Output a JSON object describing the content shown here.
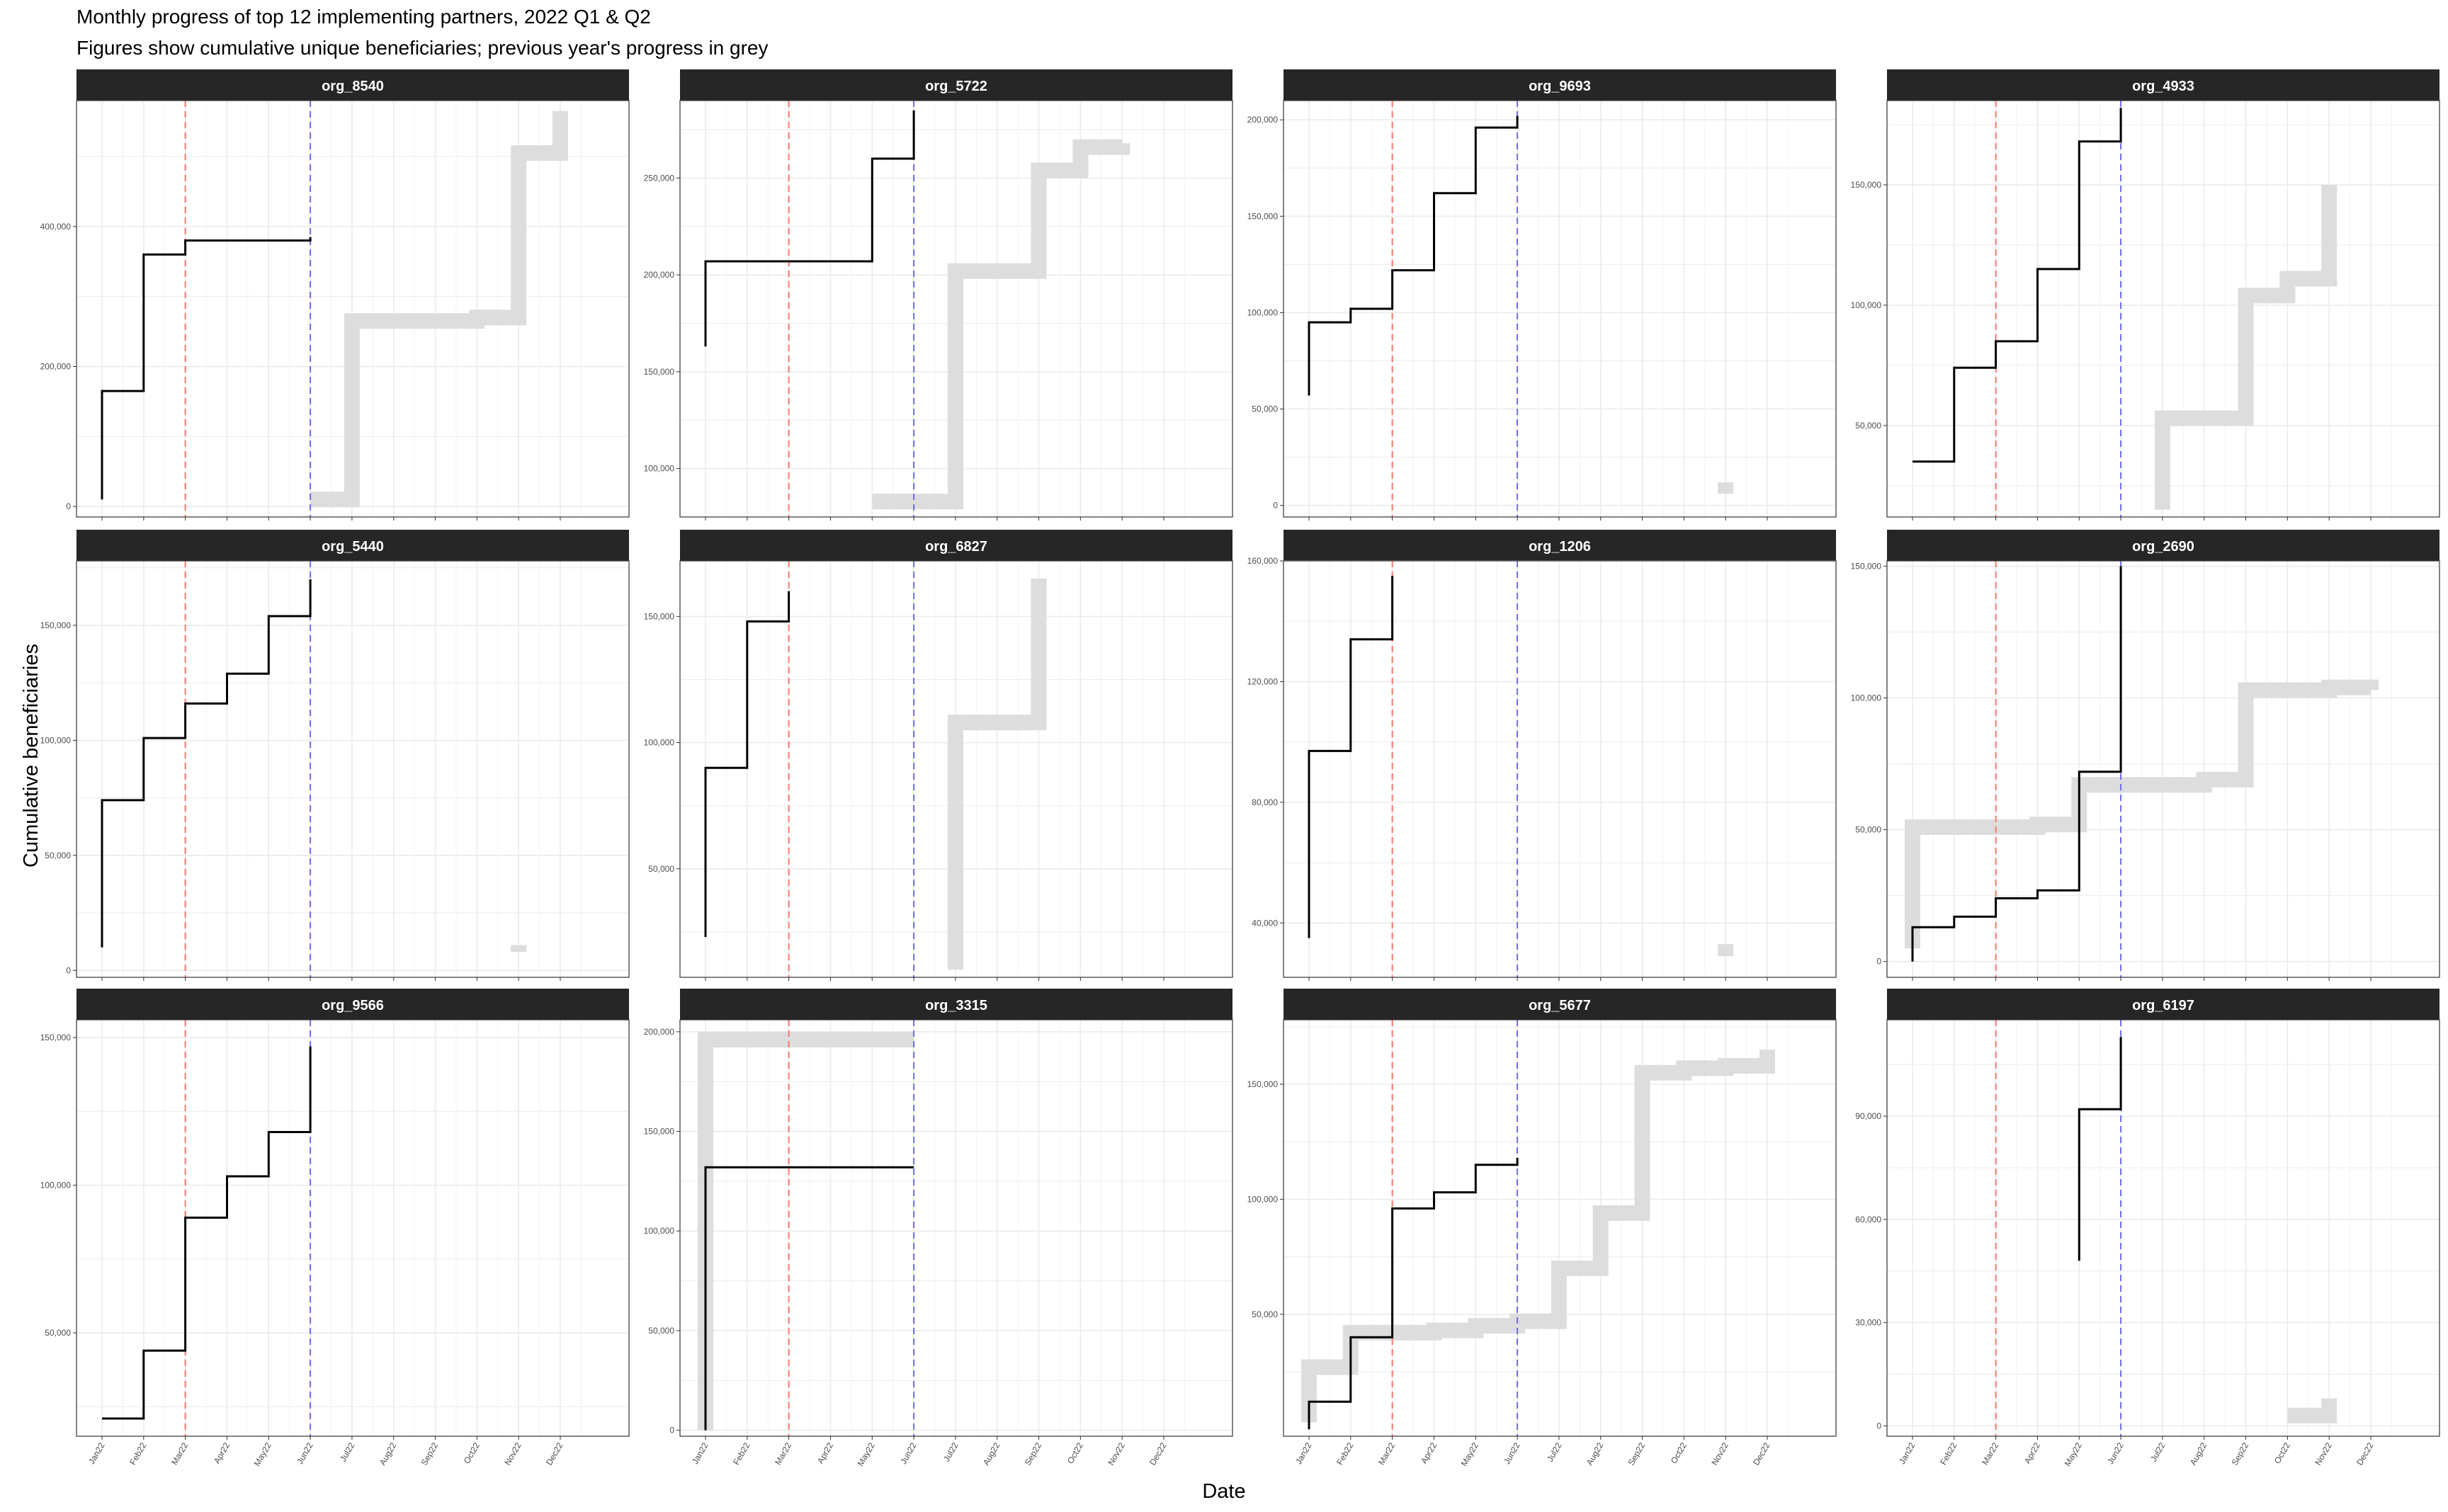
{
  "title": "Monthly progress of top 12 implementing partners, 2022 Q1 & Q2",
  "subtitle": "Figures show cumulative unique beneficiaries; previous year's progress in grey",
  "chart_data": {
    "type": "line",
    "step": true,
    "xlabel": "Date",
    "ylabel": "Cumulative beneficiaries",
    "months": [
      "Jan22",
      "Feb22",
      "Mar22",
      "Apr22",
      "May22",
      "Jun22",
      "Jul22",
      "Aug22",
      "Sep22",
      "Oct22",
      "Nov22",
      "Dec22"
    ],
    "xlim": [
      0,
      12.0
    ],
    "reference_lines": [
      {
        "date": "Mar22",
        "color": "#f8766d",
        "style": "dashed"
      },
      {
        "date": "Jun22",
        "color": "#6b6bf0",
        "style": "dashed"
      }
    ],
    "grid": true,
    "series_styles": {
      "current": {
        "color": "#000000",
        "label": "2022"
      },
      "previous": {
        "color": "#dddddd",
        "label": "previous year"
      }
    },
    "panels": [
      {
        "name": "org_8540",
        "ylim": [
          -15000,
          580000
        ],
        "yticks": [
          0,
          200000,
          400000
        ],
        "current": [
          [
            0,
            10000
          ],
          [
            0,
            165000
          ],
          [
            1,
            165000
          ],
          [
            1,
            360000
          ],
          [
            2,
            360000
          ],
          [
            2,
            380000
          ],
          [
            5,
            380000
          ],
          [
            5,
            385000
          ]
        ],
        "previous": [
          [
            5,
            10000
          ],
          [
            6,
            10000
          ],
          [
            6,
            265000
          ],
          [
            9,
            265000
          ],
          [
            9,
            270000
          ],
          [
            10,
            270000
          ],
          [
            10,
            505000
          ],
          [
            11,
            505000
          ],
          [
            11,
            565000
          ]
        ]
      },
      {
        "name": "org_5722",
        "ylim": [
          75000,
          290000
        ],
        "yticks": [
          100000,
          150000,
          200000,
          250000
        ],
        "current": [
          [
            0,
            163000
          ],
          [
            0,
            207000
          ],
          [
            4,
            207000
          ],
          [
            4,
            260000
          ],
          [
            5,
            260000
          ],
          [
            5,
            285000
          ]
        ],
        "previous": [
          [
            4,
            83000
          ],
          [
            6,
            83000
          ],
          [
            6,
            202000
          ],
          [
            8,
            202000
          ],
          [
            8,
            254000
          ],
          [
            9,
            254000
          ],
          [
            9,
            266000
          ],
          [
            10,
            266000
          ],
          [
            10,
            268000
          ]
        ]
      },
      {
        "name": "org_9693",
        "ylim": [
          -6000,
          210000
        ],
        "yticks": [
          0,
          50000,
          100000,
          150000,
          200000
        ],
        "current": [
          [
            0,
            57000
          ],
          [
            0,
            95000
          ],
          [
            1,
            95000
          ],
          [
            1,
            102000
          ],
          [
            2,
            102000
          ],
          [
            2,
            122000
          ],
          [
            3,
            122000
          ],
          [
            3,
            162000
          ],
          [
            4,
            162000
          ],
          [
            4,
            196000
          ],
          [
            5,
            196000
          ],
          [
            5,
            202000
          ]
        ],
        "previous": [
          [
            10,
            6000
          ],
          [
            10,
            12000
          ]
        ]
      },
      {
        "name": "org_4933",
        "ylim": [
          12000,
          185000
        ],
        "yticks": [
          50000,
          100000,
          150000
        ],
        "current": [
          [
            0,
            35000
          ],
          [
            1,
            35000
          ],
          [
            1,
            74000
          ],
          [
            2,
            74000
          ],
          [
            2,
            85000
          ],
          [
            3,
            85000
          ],
          [
            3,
            115000
          ],
          [
            4,
            115000
          ],
          [
            4,
            168000
          ],
          [
            5,
            168000
          ],
          [
            5,
            182000
          ]
        ],
        "previous": [
          [
            6,
            15000
          ],
          [
            6,
            53000
          ],
          [
            8,
            53000
          ],
          [
            8,
            104000
          ],
          [
            9,
            104000
          ],
          [
            9,
            111000
          ],
          [
            10,
            111000
          ],
          [
            10,
            150000
          ]
        ]
      },
      {
        "name": "org_5440",
        "ylim": [
          -3000,
          178000
        ],
        "yticks": [
          0,
          50000,
          100000,
          150000
        ],
        "current": [
          [
            0,
            10000
          ],
          [
            0,
            74000
          ],
          [
            1,
            74000
          ],
          [
            1,
            101000
          ],
          [
            2,
            101000
          ],
          [
            2,
            116000
          ],
          [
            3,
            116000
          ],
          [
            3,
            129000
          ],
          [
            4,
            129000
          ],
          [
            4,
            154000
          ],
          [
            5,
            154000
          ],
          [
            5,
            170000
          ]
        ],
        "previous": [
          [
            10,
            8000
          ],
          [
            10,
            11000
          ]
        ]
      },
      {
        "name": "org_6827",
        "ylim": [
          7000,
          172000
        ],
        "yticks": [
          50000,
          100000,
          150000
        ],
        "current": [
          [
            0,
            23000
          ],
          [
            0,
            90000
          ],
          [
            1,
            90000
          ],
          [
            1,
            148000
          ],
          [
            2,
            148000
          ],
          [
            2,
            160000
          ]
        ],
        "previous": [
          [
            6,
            10000
          ],
          [
            6,
            108000
          ],
          [
            8,
            108000
          ],
          [
            8,
            165000
          ]
        ]
      },
      {
        "name": "org_1206",
        "ylim": [
          22000,
          160000
        ],
        "yticks": [
          40000,
          80000,
          120000,
          160000
        ],
        "current": [
          [
            0,
            35000
          ],
          [
            0,
            97000
          ],
          [
            1,
            97000
          ],
          [
            1,
            134000
          ],
          [
            2,
            134000
          ],
          [
            2,
            155000
          ]
        ],
        "previous": [
          [
            10,
            29000
          ],
          [
            10,
            33000
          ]
        ]
      },
      {
        "name": "org_2690",
        "ylim": [
          -6000,
          152000
        ],
        "yticks": [
          0,
          50000,
          100000,
          150000
        ],
        "current": [
          [
            0,
            0
          ],
          [
            0,
            13000
          ],
          [
            1,
            13000
          ],
          [
            1,
            17000
          ],
          [
            2,
            17000
          ],
          [
            2,
            24000
          ],
          [
            3,
            24000
          ],
          [
            3,
            27000
          ],
          [
            4,
            27000
          ],
          [
            4,
            72000
          ],
          [
            5,
            72000
          ],
          [
            5,
            150000
          ]
        ],
        "previous": [
          [
            0,
            5000
          ],
          [
            0,
            51000
          ],
          [
            3,
            51000
          ],
          [
            3,
            52000
          ],
          [
            4,
            52000
          ],
          [
            4,
            67000
          ],
          [
            7,
            67000
          ],
          [
            7,
            69000
          ],
          [
            8,
            69000
          ],
          [
            8,
            103000
          ],
          [
            10,
            103000
          ],
          [
            10,
            104000
          ],
          [
            11,
            104000
          ],
          [
            11,
            103000
          ]
        ]
      },
      {
        "name": "org_9566",
        "ylim": [
          15000,
          156000
        ],
        "yticks": [
          50000,
          100000,
          150000
        ],
        "current": [
          [
            0,
            21000
          ],
          [
            1,
            21000
          ],
          [
            1,
            44000
          ],
          [
            2,
            44000
          ],
          [
            2,
            89000
          ],
          [
            3,
            89000
          ],
          [
            3,
            103000
          ],
          [
            4,
            103000
          ],
          [
            4,
            118000
          ],
          [
            5,
            118000
          ],
          [
            5,
            147000
          ]
        ],
        "previous": []
      },
      {
        "name": "org_3315",
        "ylim": [
          -3000,
          206000
        ],
        "yticks": [
          0,
          50000,
          100000,
          150000,
          200000
        ],
        "current": [
          [
            0,
            0
          ],
          [
            0,
            132000
          ],
          [
            5,
            132000
          ]
        ],
        "previous": [
          [
            0,
            0
          ],
          [
            0,
            196000
          ],
          [
            5,
            196000
          ]
        ]
      },
      {
        "name": "org_5677",
        "ylim": [
          -3000,
          178000
        ],
        "yticks": [
          50000,
          100000,
          150000
        ],
        "current": [
          [
            0,
            0
          ],
          [
            0,
            12000
          ],
          [
            1,
            12000
          ],
          [
            1,
            40000
          ],
          [
            2,
            40000
          ],
          [
            2,
            96000
          ],
          [
            3,
            96000
          ],
          [
            3,
            103000
          ],
          [
            4,
            103000
          ],
          [
            4,
            115000
          ],
          [
            5,
            115000
          ],
          [
            5,
            118000
          ]
        ],
        "previous": [
          [
            0,
            3000
          ],
          [
            0,
            27000
          ],
          [
            1,
            27000
          ],
          [
            1,
            42000
          ],
          [
            3,
            42000
          ],
          [
            3,
            43000
          ],
          [
            4,
            43000
          ],
          [
            4,
            45000
          ],
          [
            5,
            45000
          ],
          [
            5,
            47000
          ],
          [
            6,
            47000
          ],
          [
            6,
            70000
          ],
          [
            7,
            70000
          ],
          [
            7,
            94000
          ],
          [
            8,
            94000
          ],
          [
            8,
            155000
          ],
          [
            9,
            155000
          ],
          [
            9,
            157000
          ],
          [
            10,
            157000
          ],
          [
            10,
            158000
          ],
          [
            11,
            158000
          ],
          [
            11,
            165000
          ]
        ]
      },
      {
        "name": "org_6197",
        "ylim": [
          -3000,
          118000
        ],
        "yticks": [
          0,
          30000,
          60000,
          90000
        ],
        "current": [
          [
            4,
            48000
          ],
          [
            4,
            92000
          ],
          [
            5,
            92000
          ],
          [
            5,
            113000
          ]
        ],
        "previous": [
          [
            9,
            3000
          ],
          [
            10,
            3000
          ],
          [
            10,
            8000
          ]
        ]
      }
    ]
  }
}
